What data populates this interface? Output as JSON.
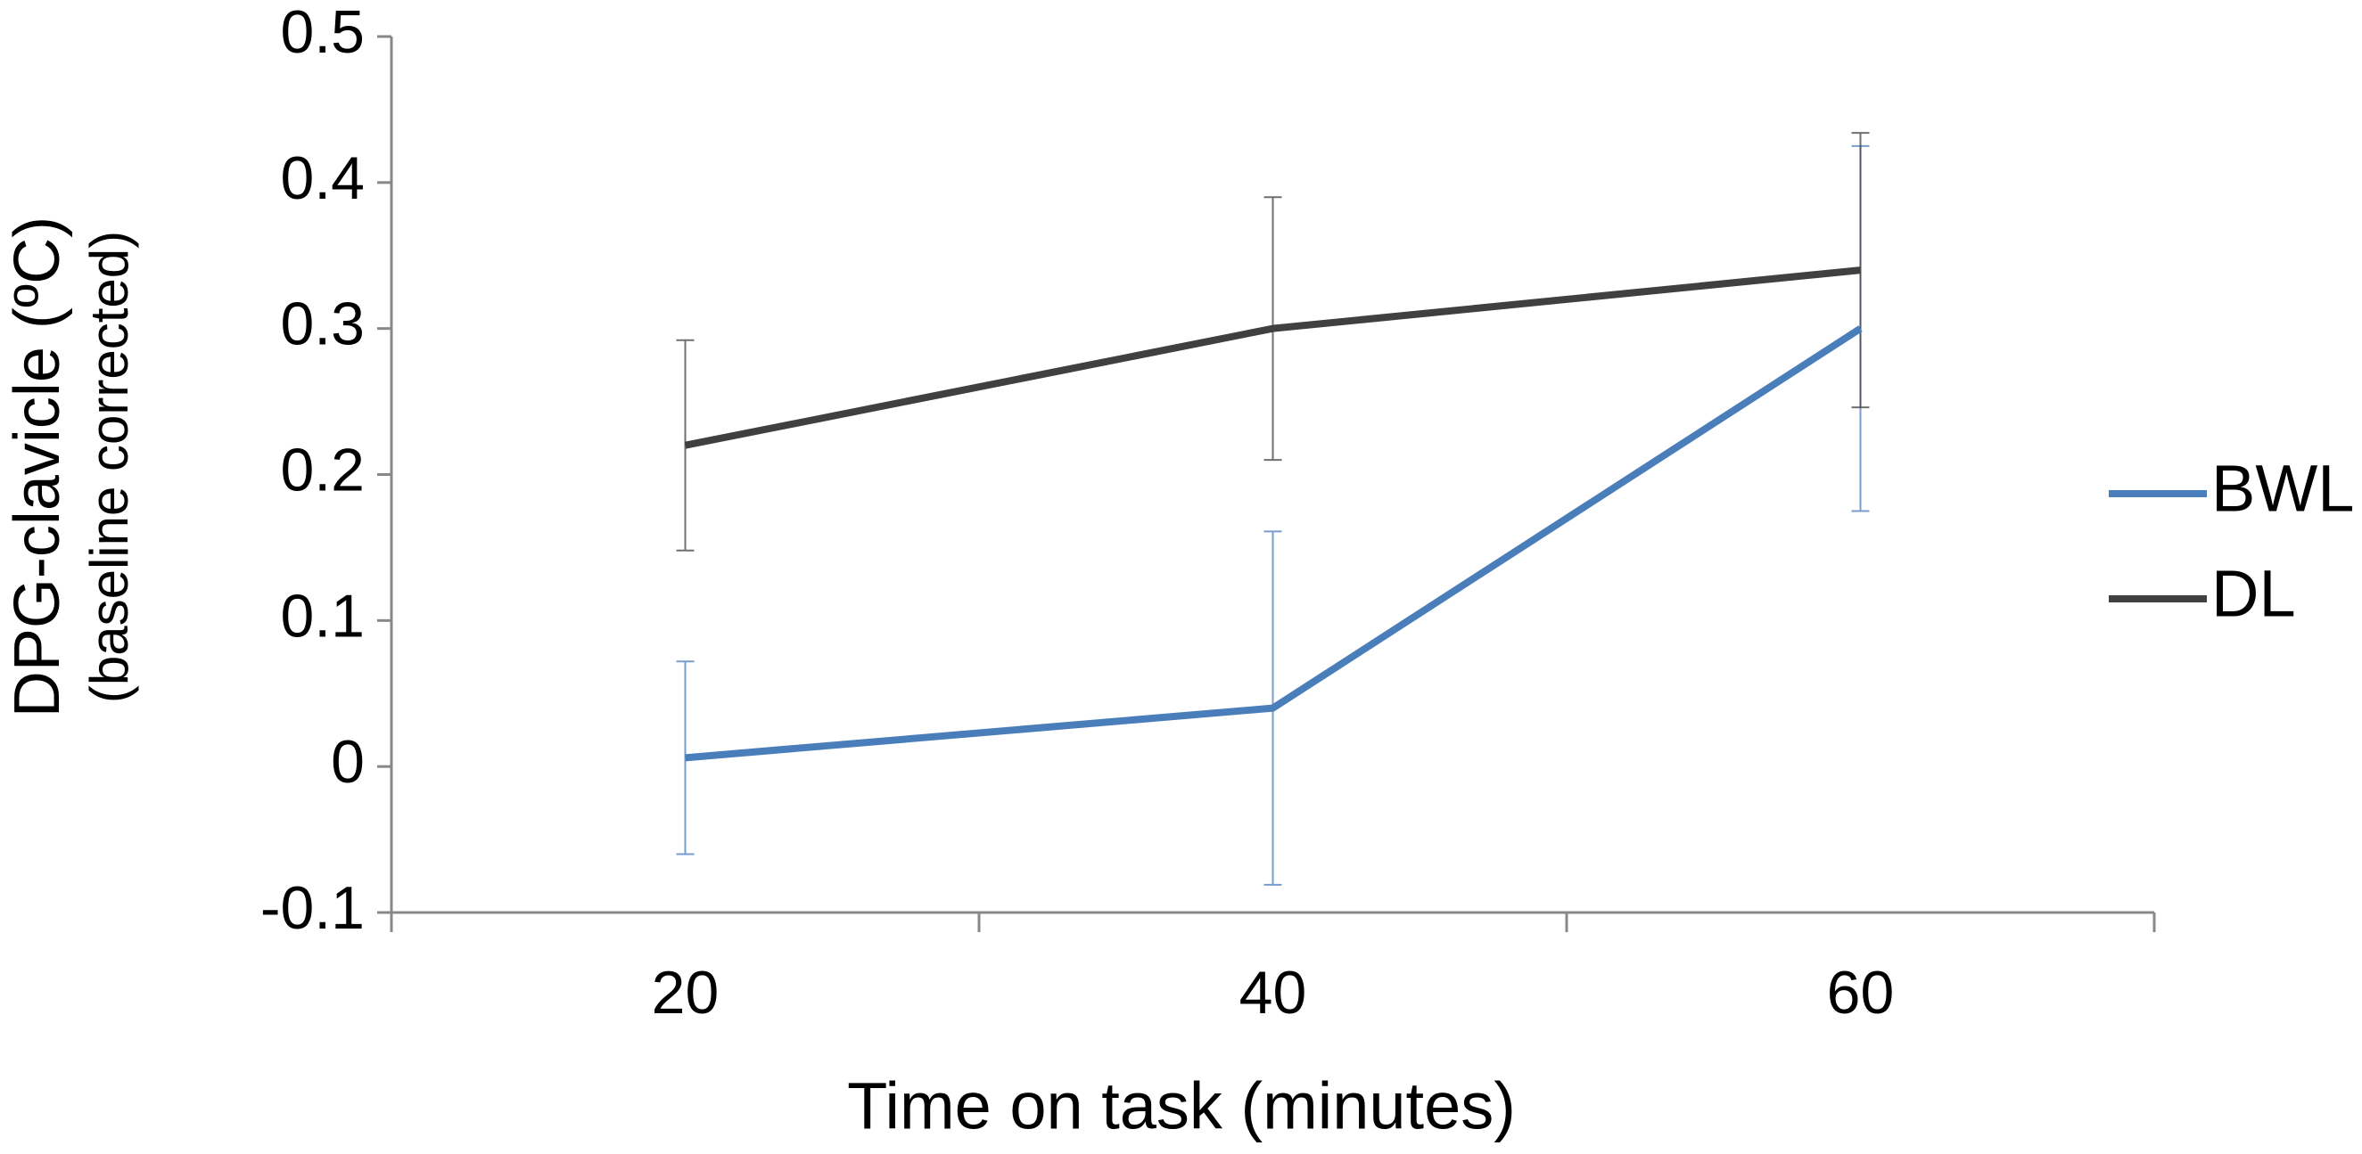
{
  "chart_data": {
    "type": "line",
    "categories": [
      "20",
      "40",
      "60"
    ],
    "series": [
      {
        "name": "BWL",
        "color": "#4a7ebb",
        "values": [
          0.006,
          0.04,
          0.3
        ],
        "errors": [
          0.066,
          0.121,
          0.125
        ]
      },
      {
        "name": "DL",
        "color": "#404040",
        "values": [
          0.22,
          0.3,
          0.34
        ],
        "errors": [
          0.072,
          0.09,
          0.094
        ]
      }
    ],
    "ylim": [
      -0.1,
      0.5
    ],
    "yticks": [
      -0.1,
      0,
      0.1,
      0.2,
      0.3,
      0.4,
      0.5
    ],
    "xlabel": "Time on task (minutes)",
    "ylabel": [
      "DPG-clavicle (ºC)",
      "(baseline corrected)"
    ],
    "grid": false,
    "legend": "right"
  }
}
